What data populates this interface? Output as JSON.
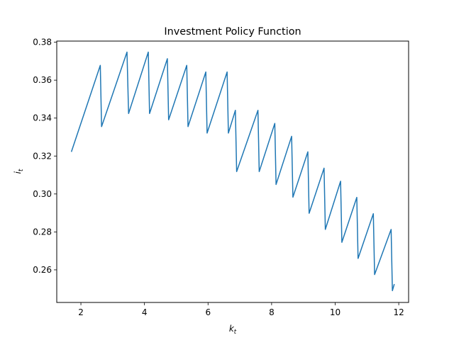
{
  "chart_data": {
    "type": "line",
    "title": "Investment Policy Function",
    "xlabel": {
      "base": "k",
      "sub": "t"
    },
    "ylabel": {
      "base": "i",
      "sub": "t"
    },
    "xlim": [
      1.24,
      12.31
    ],
    "ylim": [
      0.2428,
      0.3806
    ],
    "xticks": [
      2,
      4,
      6,
      8,
      10,
      12
    ],
    "xtick_labels": [
      "2",
      "4",
      "6",
      "8",
      "10",
      "12"
    ],
    "yticks": [
      0.26,
      0.28,
      0.3,
      0.32,
      0.34,
      0.36,
      0.38
    ],
    "ytick_labels": [
      "0.26",
      "0.28",
      "0.30",
      "0.32",
      "0.34",
      "0.36",
      "0.38"
    ],
    "grid": false,
    "line_color": "#1f77b4",
    "series": [
      {
        "x": [
          1.7,
          2.61,
          2.65,
          3.45,
          3.5,
          4.12,
          4.16,
          4.72,
          4.76,
          5.33,
          5.37,
          5.93,
          5.97,
          6.6,
          6.64,
          6.86,
          6.9,
          7.57,
          7.61,
          8.1,
          8.14,
          8.63,
          8.67,
          9.14,
          9.18,
          9.65,
          9.69,
          10.17,
          10.21,
          10.68,
          10.72,
          11.2,
          11.24,
          11.76,
          11.8,
          11.86
        ],
        "y": [
          0.3222,
          0.3678,
          0.3355,
          0.3748,
          0.3424,
          0.3748,
          0.3424,
          0.3713,
          0.3391,
          0.3678,
          0.3355,
          0.3643,
          0.3321,
          0.3643,
          0.3321,
          0.3441,
          0.3118,
          0.3441,
          0.3118,
          0.3372,
          0.305,
          0.3304,
          0.2983,
          0.3222,
          0.2898,
          0.3136,
          0.2813,
          0.3067,
          0.2745,
          0.2982,
          0.266,
          0.2896,
          0.2575,
          0.2813,
          0.249,
          0.2525
        ]
      }
    ]
  }
}
